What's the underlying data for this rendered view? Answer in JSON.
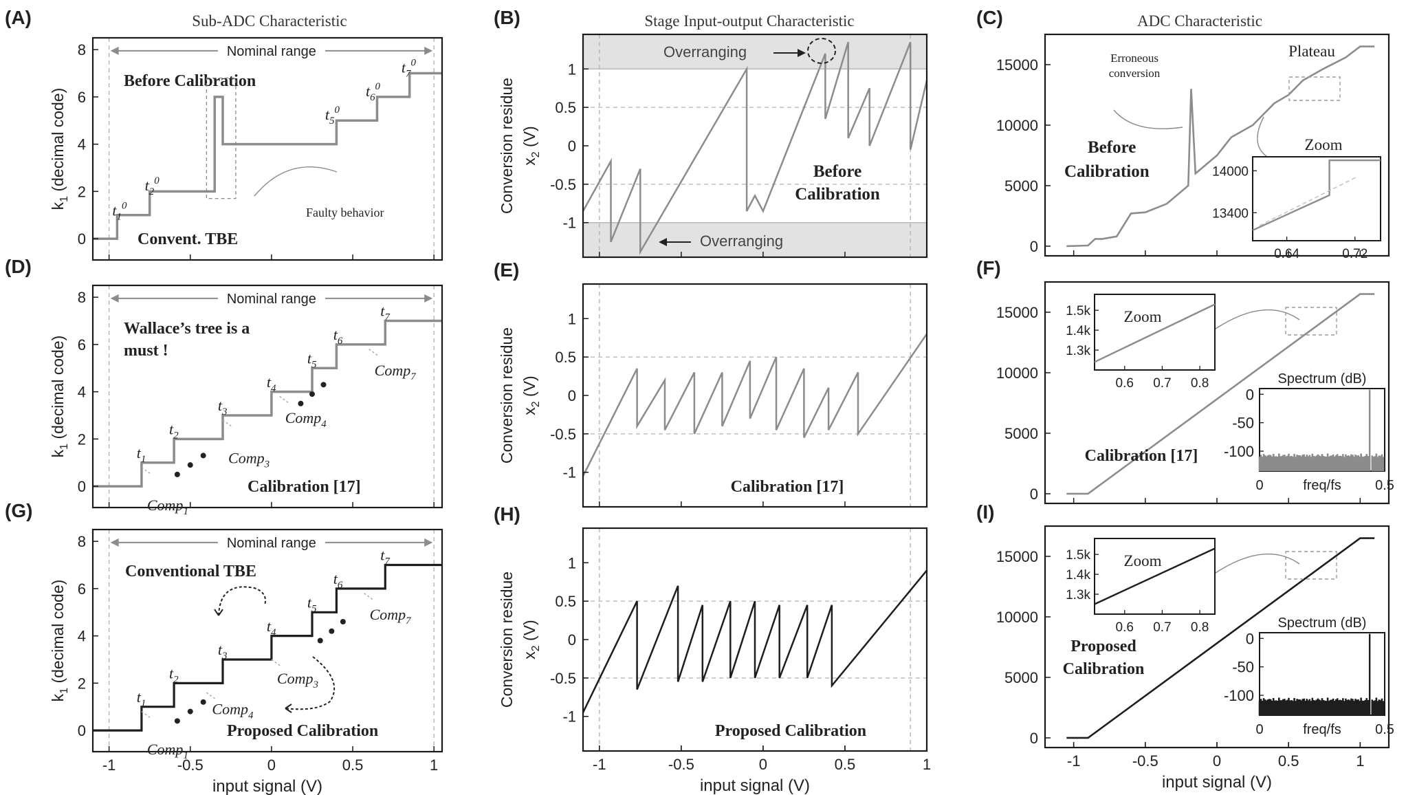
{
  "global": {
    "column_titles": [
      "Sub-ADC Characteristic",
      "Stage Input-output Characteristic",
      "ADC Characteristic"
    ],
    "xlabel": "input signal (V)",
    "x_ticks": [
      "-1",
      "-0.5",
      "0",
      "0.5",
      "1"
    ]
  },
  "colors": {
    "gray": "#8c8c8c",
    "black": "#1e1e1e",
    "dash": "#b0b0b0",
    "shade": "#e2e2e2",
    "frame": "#1a1a1a"
  },
  "chart_data": [
    {
      "id": "A",
      "label": "(A)",
      "type": "line",
      "ylabel": "k1 (decimal code)",
      "xlim": [
        -1.1,
        1.05
      ],
      "ylim": [
        -0.9,
        8.5
      ],
      "yticks": [
        0,
        2,
        4,
        6,
        8
      ],
      "series": [
        {
          "points": [
            [
              -1.1,
              0
            ],
            [
              -0.95,
              0
            ],
            [
              -0.95,
              1
            ],
            [
              -0.75,
              1
            ],
            [
              -0.75,
              2
            ],
            [
              -0.35,
              2
            ],
            [
              -0.35,
              6
            ],
            [
              -0.3,
              6
            ],
            [
              -0.3,
              4
            ],
            [
              0.1,
              4
            ],
            [
              0.4,
              4
            ],
            [
              0.4,
              5
            ],
            [
              0.65,
              5
            ],
            [
              0.65,
              6
            ],
            [
              0.85,
              6
            ],
            [
              0.85,
              7
            ],
            [
              1.05,
              7
            ]
          ]
        }
      ],
      "annotations": {
        "range_label": "Nominal range",
        "title_text": "Before Calibration",
        "bottom_text": "Convent. TBE",
        "faulty": "Faulty behavior",
        "thresholds": [
          {
            "base": "t",
            "sub": "1",
            "sup": "0"
          },
          {
            "base": "t",
            "sub": "2",
            "sup": "0"
          },
          {
            "base": "t",
            "sub": "5",
            "sup": "0"
          },
          {
            "base": "t",
            "sub": "6",
            "sup": "0"
          },
          {
            "base": "t",
            "sub": "7",
            "sup": "0"
          }
        ]
      }
    },
    {
      "id": "D",
      "label": "(D)",
      "type": "line",
      "ylabel": "k1 (decimal code)",
      "xlim": [
        -1.1,
        1.05
      ],
      "ylim": [
        -0.9,
        8.5
      ],
      "yticks": [
        0,
        2,
        4,
        6,
        8
      ],
      "series": [
        {
          "points": [
            [
              -1.1,
              0
            ],
            [
              -0.8,
              0
            ],
            [
              -0.8,
              1
            ],
            [
              -0.6,
              1
            ],
            [
              -0.6,
              2
            ],
            [
              -0.3,
              2
            ],
            [
              -0.3,
              3
            ],
            [
              0,
              3
            ],
            [
              0,
              4
            ],
            [
              0.25,
              4
            ],
            [
              0.25,
              5
            ],
            [
              0.4,
              5
            ],
            [
              0.4,
              6
            ],
            [
              0.7,
              6
            ],
            [
              0.7,
              7
            ],
            [
              1.05,
              7
            ]
          ]
        }
      ],
      "annotations": {
        "range_label": "Nominal range",
        "title_lines": [
          "Wallace’s tree is a",
          "must !"
        ],
        "bottom_text": "Calibration [17]",
        "thresholds": [
          {
            "base": "t",
            "sub": "1"
          },
          {
            "base": "t",
            "sub": "2"
          },
          {
            "base": "t",
            "sub": "3"
          },
          {
            "base": "t",
            "sub": "4"
          },
          {
            "base": "t",
            "sub": "5"
          },
          {
            "base": "t",
            "sub": "6"
          },
          {
            "base": "t",
            "sub": "7"
          }
        ],
        "comparators": [
          {
            "base": "Comp",
            "sub": "1"
          },
          {
            "base": "Comp",
            "sub": "3"
          },
          {
            "base": "Comp",
            "sub": "4"
          },
          {
            "base": "Comp",
            "sub": "7"
          }
        ]
      }
    },
    {
      "id": "G",
      "label": "(G)",
      "type": "line",
      "ylabel": "k1 (decimal code)",
      "xlim": [
        -1.1,
        1.05
      ],
      "ylim": [
        -0.9,
        8.5
      ],
      "yticks": [
        0,
        2,
        4,
        6,
        8
      ],
      "xticks": [
        -1,
        -0.5,
        0,
        0.5,
        1
      ],
      "xlabel": "input signal (V)",
      "series": [
        {
          "points": [
            [
              -1.1,
              0
            ],
            [
              -0.8,
              0
            ],
            [
              -0.8,
              1
            ],
            [
              -0.6,
              1
            ],
            [
              -0.6,
              2
            ],
            [
              -0.3,
              2
            ],
            [
              -0.3,
              3
            ],
            [
              0,
              3
            ],
            [
              0,
              4
            ],
            [
              0.25,
              4
            ],
            [
              0.25,
              5
            ],
            [
              0.4,
              5
            ],
            [
              0.4,
              6
            ],
            [
              0.7,
              6
            ],
            [
              0.7,
              7
            ],
            [
              1.05,
              7
            ]
          ]
        }
      ],
      "annotations": {
        "range_label": "Nominal range",
        "title_text": "Conventional TBE",
        "bottom_text": "Proposed Calibration",
        "thresholds": [
          {
            "base": "t",
            "sub": "1"
          },
          {
            "base": "t",
            "sub": "2"
          },
          {
            "base": "t",
            "sub": "3"
          },
          {
            "base": "t",
            "sub": "4"
          },
          {
            "base": "t",
            "sub": "5"
          },
          {
            "base": "t",
            "sub": "6"
          },
          {
            "base": "t",
            "sub": "7"
          }
        ],
        "comparators": [
          {
            "base": "Comp",
            "sub": "1"
          },
          {
            "base": "Comp",
            "sub": "4"
          },
          {
            "base": "Comp",
            "sub": "3"
          },
          {
            "base": "Comp",
            "sub": "7"
          }
        ]
      }
    },
    {
      "id": "B",
      "label": "(B)",
      "type": "line",
      "ylabel": "Conversion residue",
      "ylabel2": "x2 (V)",
      "xlim": [
        -1.1,
        1.0
      ],
      "ylim": [
        -1.45,
        1.45
      ],
      "yticks": [
        -1,
        -0.5,
        0,
        0.5,
        1
      ],
      "shaded_bands": [
        [
          1.0,
          1.45
        ],
        [
          -1.45,
          -1.0
        ]
      ],
      "series": [
        {
          "points": [
            [
              -1.1,
              -0.85
            ],
            [
              -0.93,
              -0.2
            ],
            [
              -0.93,
              -1.25
            ],
            [
              -0.75,
              -0.3
            ],
            [
              -0.75,
              -1.38
            ],
            [
              -0.1,
              1.0
            ],
            [
              -0.1,
              -0.85
            ],
            [
              -0.05,
              -0.65
            ],
            [
              0.0,
              -0.85
            ],
            [
              0.38,
              1.2
            ],
            [
              0.38,
              0.35
            ],
            [
              0.52,
              1.35
            ],
            [
              0.52,
              0.1
            ],
            [
              0.65,
              0.75
            ],
            [
              0.65,
              0.0
            ],
            [
              0.9,
              1.35
            ],
            [
              0.9,
              -0.05
            ],
            [
              1.0,
              0.85
            ]
          ]
        }
      ],
      "annotations": {
        "overranging": "Overranging",
        "title_lines": [
          "Before",
          "Calibration"
        ]
      }
    },
    {
      "id": "E",
      "label": "(E)",
      "type": "line",
      "ylabel": "Conversion residue",
      "ylabel2": "x2 (V)",
      "xlim": [
        -1.1,
        1.0
      ],
      "ylim": [
        -1.45,
        1.45
      ],
      "yticks": [
        -1,
        -0.5,
        0,
        0.5,
        1
      ],
      "series": [
        {
          "points": [
            [
              -1.1,
              -1.05
            ],
            [
              -0.77,
              0.35
            ],
            [
              -0.77,
              -0.4
            ],
            [
              -0.6,
              0.2
            ],
            [
              -0.6,
              -0.45
            ],
            [
              -0.42,
              0.3
            ],
            [
              -0.42,
              -0.5
            ],
            [
              -0.25,
              0.3
            ],
            [
              -0.25,
              -0.4
            ],
            [
              -0.08,
              0.45
            ],
            [
              -0.08,
              -0.3
            ],
            [
              0.08,
              0.5
            ],
            [
              0.08,
              -0.45
            ],
            [
              0.25,
              0.35
            ],
            [
              0.25,
              -0.55
            ],
            [
              0.4,
              0.1
            ],
            [
              0.4,
              -0.45
            ],
            [
              0.58,
              0.3
            ],
            [
              0.58,
              -0.5
            ],
            [
              1.0,
              0.8
            ]
          ]
        }
      ],
      "annotations": {
        "bottom_text": "Calibration [17]"
      }
    },
    {
      "id": "H",
      "label": "(H)",
      "type": "line",
      "ylabel": "Conversion residue",
      "ylabel2": "x2 (V)",
      "xlim": [
        -1.1,
        1.0
      ],
      "ylim": [
        -1.45,
        1.45
      ],
      "yticks": [
        -1,
        -0.5,
        0,
        0.5,
        1
      ],
      "xticks": [
        -1,
        -0.5,
        0,
        0.5,
        1
      ],
      "xlabel": "input signal (V)",
      "series": [
        {
          "points": [
            [
              -1.1,
              -0.95
            ],
            [
              -0.77,
              0.5
            ],
            [
              -0.77,
              -0.65
            ],
            [
              -0.52,
              0.7
            ],
            [
              -0.52,
              -0.55
            ],
            [
              -0.37,
              0.45
            ],
            [
              -0.37,
              -0.55
            ],
            [
              -0.2,
              0.5
            ],
            [
              -0.2,
              -0.5
            ],
            [
              -0.05,
              0.5
            ],
            [
              -0.05,
              -0.5
            ],
            [
              0.1,
              0.45
            ],
            [
              0.1,
              -0.5
            ],
            [
              0.27,
              0.45
            ],
            [
              0.27,
              -0.5
            ],
            [
              0.42,
              0.45
            ],
            [
              0.42,
              -0.6
            ],
            [
              1.0,
              0.9
            ]
          ]
        }
      ],
      "annotations": {
        "bottom_text": "Proposed Calibration"
      }
    },
    {
      "id": "C",
      "label": "(C)",
      "type": "line",
      "xlim": [
        -1.2,
        1.2
      ],
      "ylim": [
        -800,
        17500
      ],
      "yticks": [
        0,
        5000,
        10000,
        15000
      ],
      "series": [
        {
          "points": [
            [
              -1.05,
              0
            ],
            [
              -0.9,
              50
            ],
            [
              -0.85,
              600
            ],
            [
              -0.8,
              600
            ],
            [
              -0.7,
              800
            ],
            [
              -0.6,
              2700
            ],
            [
              -0.5,
              2800
            ],
            [
              -0.35,
              3500
            ],
            [
              -0.2,
              5000
            ],
            [
              -0.18,
              13000
            ],
            [
              -0.15,
              6000
            ],
            [
              0,
              7500
            ],
            [
              0.1,
              9000
            ],
            [
              0.25,
              10000
            ],
            [
              0.4,
              11800
            ],
            [
              0.5,
              12500
            ],
            [
              0.6,
              13700
            ],
            [
              0.75,
              14700
            ],
            [
              0.9,
              15600
            ],
            [
              1.0,
              16500
            ],
            [
              1.1,
              16500
            ]
          ]
        }
      ],
      "annotations": {
        "erroneous": [
          "Erroneous",
          "conversion"
        ],
        "plateau": "Plateau",
        "zoom": "Zoom",
        "before": [
          "Before",
          "Calibration"
        ]
      },
      "inset": {
        "xlim": [
          0.6,
          0.75
        ],
        "ylim": [
          13000,
          14200
        ],
        "xticks": [
          0.64,
          0.72
        ],
        "yticks": [
          13400,
          14000
        ],
        "series": [
          {
            "points": [
              [
                0.6,
                13150
              ],
              [
                0.69,
                13650
              ],
              [
                0.69,
                14150
              ],
              [
                0.75,
                14150
              ]
            ]
          }
        ]
      }
    },
    {
      "id": "F",
      "label": "(F)",
      "type": "line",
      "xlim": [
        -1.2,
        1.2
      ],
      "ylim": [
        -800,
        17500
      ],
      "yticks": [
        0,
        5000,
        10000,
        15000
      ],
      "series": [
        {
          "points": [
            [
              -1.05,
              0
            ],
            [
              -0.9,
              0
            ],
            [
              1.0,
              16500
            ],
            [
              1.1,
              16500
            ]
          ]
        }
      ],
      "annotations": {
        "zoom": "Zoom",
        "bottom_text": "Calibration [17]"
      },
      "inset": {
        "xlim": [
          0.52,
          0.84
        ],
        "ylim": [
          1200,
          1580
        ],
        "xticks": [
          0.6,
          0.7,
          0.8
        ],
        "yticks": [
          1300,
          1400,
          1500
        ],
        "ytick_labels": [
          "1.3k",
          "1.4k",
          "1.5k"
        ],
        "series": [
          {
            "points": [
              [
                0.52,
                1240
              ],
              [
                0.84,
                1530
              ]
            ]
          }
        ]
      },
      "spectrum": {
        "title": "Spectrum (dB)",
        "xlabel": "freq/fs",
        "xlim": [
          0,
          0.5
        ],
        "ylim": [
          -135,
          10
        ],
        "xticks": [
          0,
          0.5
        ],
        "xtick_labels": [
          "0",
          "0.5"
        ],
        "yticks": [
          0,
          -50,
          -100
        ],
        "noise_floor": -110,
        "tone_freq": 0.44,
        "tone_level": 0
      }
    },
    {
      "id": "I",
      "label": "(I)",
      "type": "line",
      "xlim": [
        -1.2,
        1.2
      ],
      "ylim": [
        -800,
        17500
      ],
      "yticks": [
        0,
        5000,
        10000,
        15000
      ],
      "xticks": [
        -1,
        -0.5,
        0,
        0.5,
        1
      ],
      "xlabel": "input signal (V)",
      "series": [
        {
          "points": [
            [
              -1.05,
              0
            ],
            [
              -0.9,
              0
            ],
            [
              1.0,
              16500
            ],
            [
              1.1,
              16500
            ]
          ]
        }
      ],
      "annotations": {
        "zoom": "Zoom",
        "bottom_lines": [
          "Proposed",
          "Calibration"
        ]
      },
      "inset": {
        "xlim": [
          0.52,
          0.84
        ],
        "ylim": [
          1200,
          1580
        ],
        "xticks": [
          0.6,
          0.7,
          0.8
        ],
        "yticks": [
          1300,
          1400,
          1500
        ],
        "ytick_labels": [
          "1.3k",
          "1.4k",
          "1.5k"
        ],
        "series": [
          {
            "points": [
              [
                0.52,
                1250
              ],
              [
                0.84,
                1530
              ]
            ]
          }
        ]
      },
      "spectrum": {
        "title": "Spectrum (dB)",
        "xlabel": "freq/fs",
        "xlim": [
          0,
          0.5
        ],
        "ylim": [
          -135,
          10
        ],
        "xticks": [
          0,
          0.5
        ],
        "xtick_labels": [
          "0",
          "0.5"
        ],
        "yticks": [
          0,
          -50,
          -100
        ],
        "noise_floor": -110,
        "tone_freq": 0.44,
        "tone_level": 0
      }
    }
  ]
}
